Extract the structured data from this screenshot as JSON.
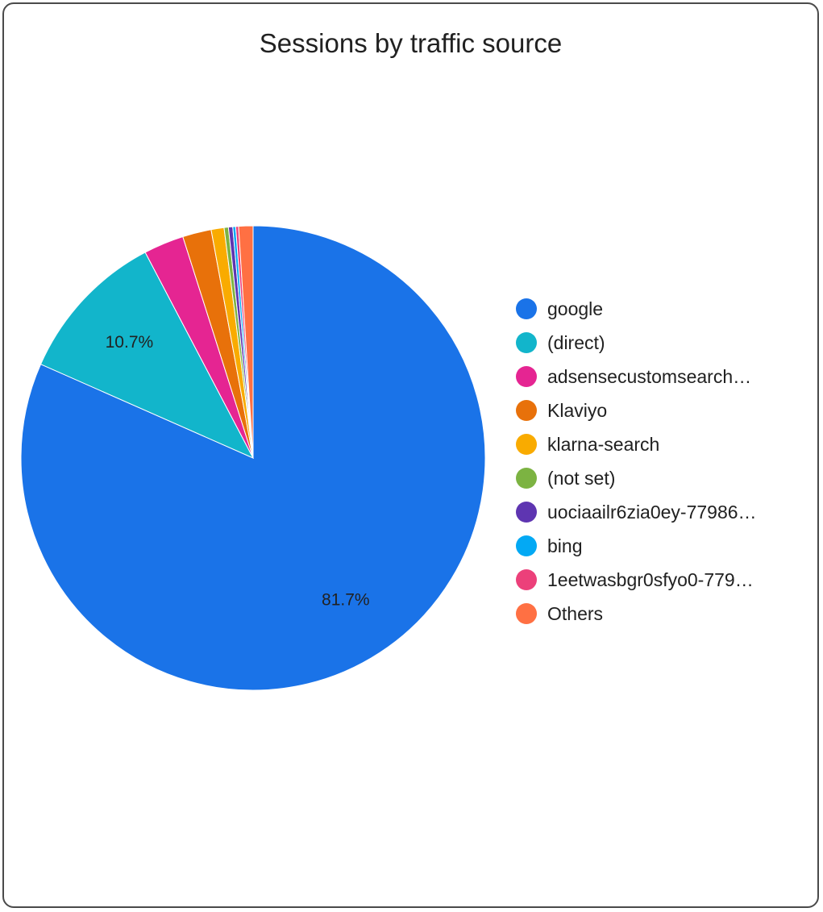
{
  "chart_data": {
    "type": "pie",
    "title": "Sessions by traffic source",
    "categories": [
      "google",
      "(direct)",
      "adsensecustomsearch…",
      "Klaviyo",
      "klarna-search",
      "(not set)",
      "uociaailr6zia0ey-77986…",
      "bing",
      "1eetwasbgr0sfyo0-779…",
      "Others"
    ],
    "values": [
      81.7,
      10.7,
      2.8,
      2.0,
      0.9,
      0.3,
      0.3,
      0.2,
      0.2,
      1.0
    ],
    "colors": [
      "#1a73e8",
      "#12b5cb",
      "#e52592",
      "#e8710a",
      "#f9ab00",
      "#7cb342",
      "#5e35b1",
      "#03a9f4",
      "#ec407a",
      "#ff7043"
    ],
    "data_labels": [
      "81.7%",
      "10.7%",
      "",
      "",
      "",
      "",
      "",
      "",
      "",
      ""
    ],
    "start_angle_deg": 0,
    "direction": "clockwise",
    "legend_position": "right"
  }
}
